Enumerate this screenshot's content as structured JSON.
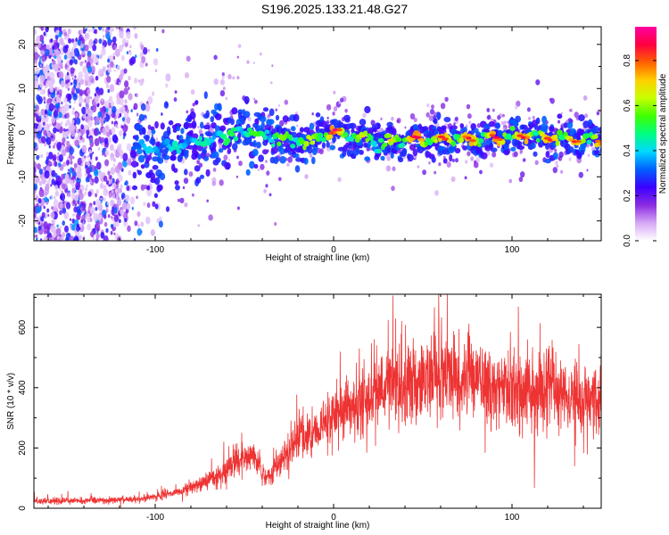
{
  "title": "S196.2025.133.21.48.G27",
  "chart_data": [
    {
      "type": "heatmap",
      "xlabel": "Height of straight line (km)",
      "ylabel": "Frequency (Hz)",
      "xlim": [
        -168,
        150
      ],
      "ylim": [
        -24.5,
        24
      ],
      "xticks": [
        -100,
        0,
        100
      ],
      "yticks": [
        -20,
        -10,
        0,
        10,
        20
      ],
      "xtick_labels": [
        "-100",
        "0",
        "100"
      ],
      "ytick_labels": [
        "-20",
        "-10",
        "0",
        "10",
        "20"
      ],
      "ridge": {
        "x": [
          -112,
          -100,
          -90,
          -80,
          -70,
          -60,
          -50,
          -40,
          -30,
          -20,
          -10,
          0,
          10,
          20,
          30,
          40,
          50,
          60,
          70,
          80,
          90,
          100,
          110,
          120,
          130,
          140,
          150
        ],
        "y": [
          -3.5,
          -3.5,
          -3,
          -2,
          -1.5,
          -0.5,
          0.5,
          -0.5,
          -1.5,
          -2,
          -1.5,
          0.5,
          -1,
          -1.5,
          -2.5,
          -1.5,
          -1.5,
          -1.5,
          -1.5,
          -1.5,
          -1,
          -1,
          -0.5,
          -1,
          -1.5,
          -1.5,
          -1.5
        ],
        "amp": [
          0.3,
          0.3,
          0.35,
          0.35,
          0.4,
          0.45,
          0.5,
          0.5,
          0.55,
          0.6,
          0.65,
          0.85,
          0.6,
          0.6,
          0.55,
          0.8,
          0.8,
          0.75,
          0.8,
          0.75,
          0.8,
          0.75,
          0.8,
          0.75,
          0.8,
          0.7,
          0.8
        ]
      },
      "noise_region_x": [
        -168,
        -90
      ],
      "colorbar": {
        "label": "Normalized spectral amplitude",
        "range": [
          0,
          0.95
        ],
        "ticks": [
          0.0,
          0.2,
          0.4,
          0.6,
          0.8
        ],
        "tick_labels": [
          "0.0",
          "0.2",
          "0.4",
          "0.6",
          "0.8"
        ],
        "colors": [
          "#ffffff",
          "#d6a8f5",
          "#8a2be2",
          "#3a00ff",
          "#0060ff",
          "#00d8ff",
          "#00ff80",
          "#40ff00",
          "#c8ff00",
          "#ffd000",
          "#ff6000",
          "#ff0040",
          "#ff00a0"
        ]
      }
    },
    {
      "type": "line",
      "xlabel": "Height of straight line (km)",
      "ylabel": "SNR (10 * v/v)",
      "xlim": [
        -168,
        150
      ],
      "ylim": [
        0,
        710
      ],
      "xticks": [
        -100,
        0,
        100
      ],
      "yticks": [
        0,
        200,
        400,
        600
      ],
      "xtick_labels": [
        "-100",
        "0",
        "100"
      ],
      "ytick_labels": [
        "0",
        "200",
        "400",
        "600"
      ],
      "color": "#ee3333",
      "trend": {
        "x": [
          -168,
          -140,
          -110,
          -90,
          -70,
          -55,
          -45,
          -38,
          -30,
          -20,
          -10,
          0,
          10,
          20,
          30,
          40,
          50,
          60,
          70,
          80,
          90,
          100,
          110,
          120,
          130,
          140,
          150
        ],
        "y": [
          25,
          25,
          30,
          50,
          90,
          150,
          180,
          100,
          150,
          240,
          250,
          310,
          340,
          360,
          420,
          410,
          420,
          440,
          430,
          450,
          400,
          390,
          390,
          410,
          380,
          360,
          360
        ]
      },
      "peak": 710
    }
  ]
}
